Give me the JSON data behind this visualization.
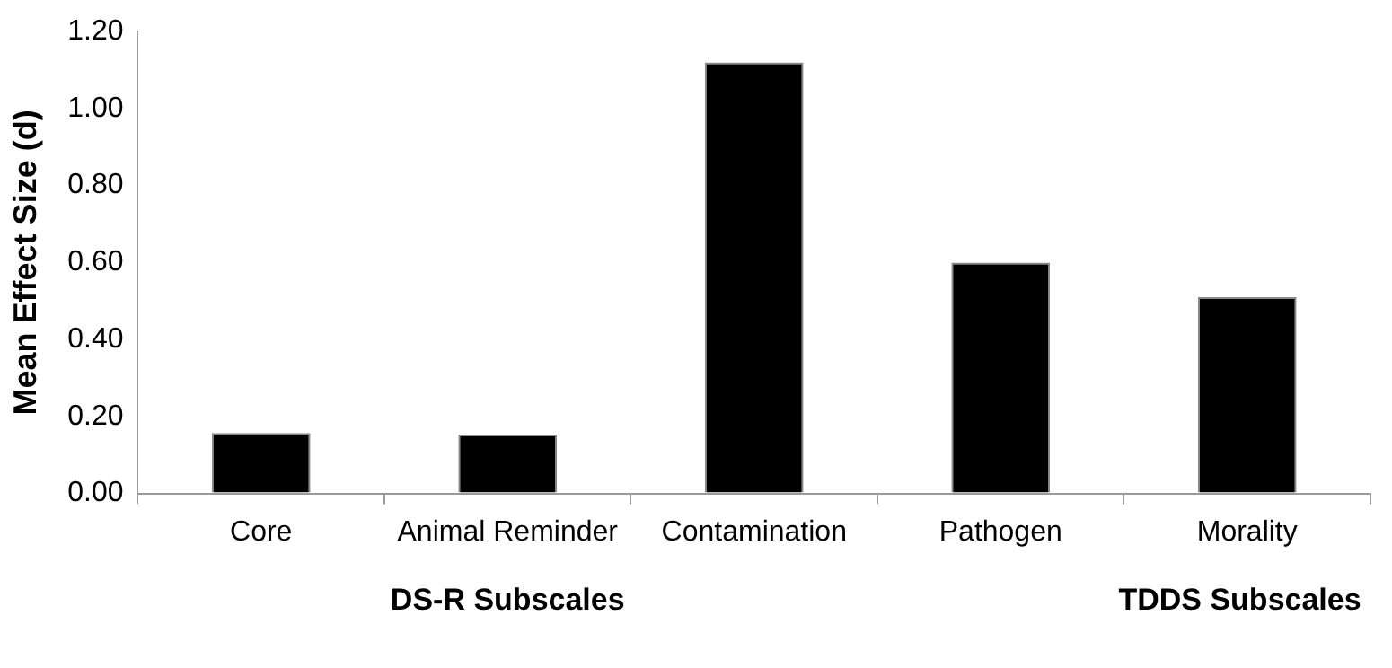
{
  "chart_data": {
    "type": "bar",
    "ylabel": "Mean Effect Size (d)",
    "categories": [
      "Core",
      "Animal Reminder",
      "Contamination",
      "Pathogen",
      "Morality"
    ],
    "values": [
      0.157,
      0.153,
      1.12,
      0.6,
      0.51
    ],
    "color": "#000000",
    "ylim": [
      0,
      1.2
    ],
    "yticks": [
      {
        "value": 0,
        "label": "0.00"
      },
      {
        "value": 0.2,
        "label": "0.20"
      },
      {
        "value": 0.4,
        "label": "0.40"
      },
      {
        "value": 0.6,
        "label": "0.60"
      },
      {
        "value": 0.8,
        "label": "0.80"
      },
      {
        "value": 1,
        "label": "1.00"
      },
      {
        "value": 1.2,
        "label": "1.20"
      }
    ],
    "annotations": [
      "DS-R Subscales",
      "TDDS Subscales"
    ],
    "grid": false,
    "legend": false
  }
}
